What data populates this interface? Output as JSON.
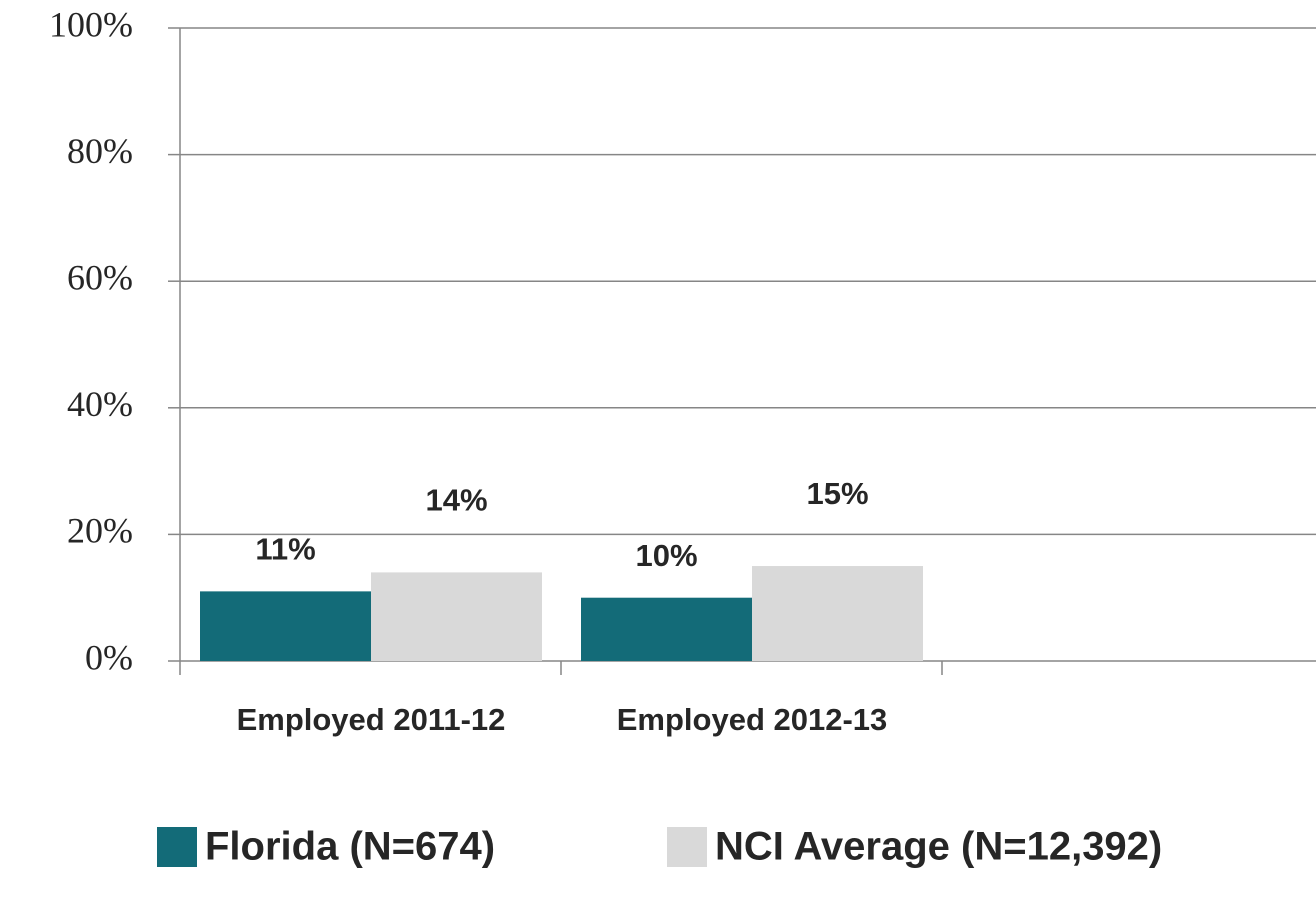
{
  "chart_data": {
    "type": "bar",
    "categories": [
      "Employed 2011-12",
      "Employed 2012-13"
    ],
    "series": [
      {
        "name": "Florida (N=674)",
        "color": "#136b78",
        "values": [
          11,
          10
        ],
        "value_labels": [
          "11%",
          "10%"
        ]
      },
      {
        "name": "NCI Average (N=12,392)",
        "color": "#d9d9d9",
        "values": [
          14,
          15
        ],
        "value_labels": [
          "14%",
          "15%"
        ]
      }
    ],
    "ylim": [
      0,
      100
    ],
    "yticks": [
      {
        "value": 0,
        "label": "0%"
      },
      {
        "value": 20,
        "label": "20%"
      },
      {
        "value": 40,
        "label": "40%"
      },
      {
        "value": 60,
        "label": "60%"
      },
      {
        "value": 80,
        "label": "80%"
      },
      {
        "value": 100,
        "label": "100%"
      }
    ],
    "grid": true,
    "legend": "bottom"
  }
}
